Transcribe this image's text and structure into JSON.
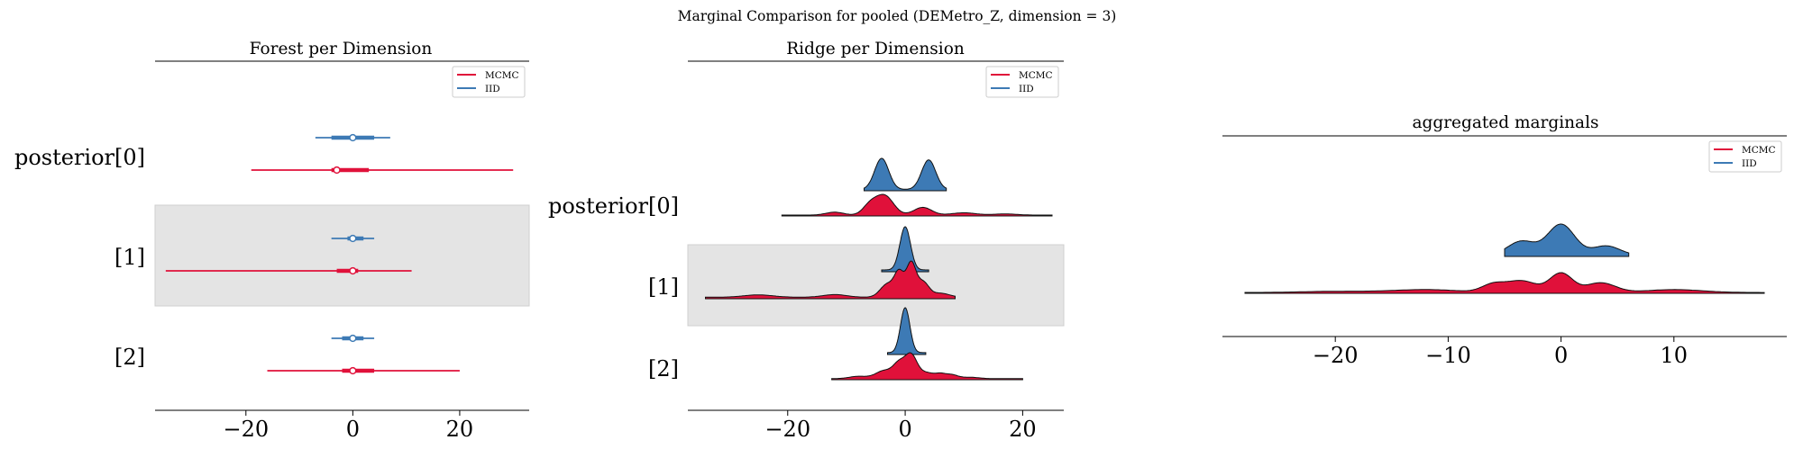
{
  "suptitle": "Marginal Comparison for pooled (DEMetro_Z, dimension = 3)",
  "colors": {
    "mcmc": "#e0113a",
    "iid": "#3d7ab5",
    "band": "#e4e4e4"
  },
  "chart_data": [
    {
      "type": "forest",
      "title": "Forest per Dimension",
      "xlim": [
        -37,
        33
      ],
      "xticks": [
        -20,
        0,
        20
      ],
      "xticklabels": [
        "−20",
        "0",
        "20"
      ],
      "ylabels": [
        "posterior[0]",
        "[1]",
        "[2]"
      ],
      "legend": {
        "position": "top-right",
        "entries": [
          "MCMC",
          "IID"
        ]
      },
      "series": [
        {
          "name": "MCMC",
          "rows": [
            {
              "median": -3,
              "iqr": [
                -4,
                3
              ],
              "hdi": [
                -19,
                30
              ]
            },
            {
              "median": 0,
              "iqr": [
                -3,
                1
              ],
              "hdi": [
                -35,
                11
              ]
            },
            {
              "median": 0,
              "iqr": [
                -2,
                4
              ],
              "hdi": [
                -16,
                20
              ]
            }
          ]
        },
        {
          "name": "IID",
          "rows": [
            {
              "median": 0,
              "iqr": [
                -4,
                4
              ],
              "hdi": [
                -7,
                7
              ]
            },
            {
              "median": 0,
              "iqr": [
                -1,
                2
              ],
              "hdi": [
                -4,
                4
              ]
            },
            {
              "median": 0,
              "iqr": [
                -2,
                2
              ],
              "hdi": [
                -4,
                4
              ]
            }
          ]
        }
      ]
    },
    {
      "type": "ridge",
      "title": "Ridge per Dimension",
      "xlim": [
        -37,
        27
      ],
      "xticks": [
        -20,
        0,
        20
      ],
      "xticklabels": [
        "−20",
        "0",
        "20"
      ],
      "ylabels": [
        "posterior[0]",
        "[1]",
        "[2]"
      ],
      "legend": {
        "position": "top-right",
        "entries": [
          "MCMC",
          "IID"
        ]
      },
      "ridges": [
        {
          "iid": {
            "range": [
              -7,
              7
            ],
            "peaks": [
              [
                -4,
                1.2,
                1.0
              ],
              [
                4,
                1.2,
                0.95
              ]
            ]
          },
          "mcmc": {
            "range": [
              -21,
              25
            ],
            "peaks": [
              [
                -3.5,
                1.5,
                1.0
              ],
              [
                -6,
                1.2,
                0.5
              ],
              [
                3,
                1.5,
                0.4
              ],
              [
                -12,
                1.5,
                0.15
              ],
              [
                10,
                2.0,
                0.12
              ],
              [
                17,
                2.0,
                0.06
              ]
            ]
          }
        },
        {
          "iid": {
            "range": [
              -4,
              4
            ],
            "peaks": [
              [
                0,
                0.9,
                1.0
              ]
            ]
          },
          "mcmc": {
            "range": [
              -34,
              8.5
            ],
            "peaks": [
              [
                -1,
                0.8,
                0.7
              ],
              [
                1,
                0.8,
                1.0
              ],
              [
                3,
                1.0,
                0.45
              ],
              [
                -3,
                1.2,
                0.4
              ],
              [
                -12,
                2.0,
                0.08
              ],
              [
                -25,
                2.5,
                0.07
              ],
              [
                6,
                1.5,
                0.12
              ]
            ]
          }
        },
        {
          "iid": {
            "range": [
              -3,
              3.5
            ],
            "peaks": [
              [
                0,
                0.8,
                1.0
              ]
            ]
          },
          "mcmc": {
            "range": [
              -12.5,
              20
            ],
            "peaks": [
              [
                -1,
                1.0,
                0.6
              ],
              [
                1,
                1.0,
                1.0
              ],
              [
                -3.5,
                1.5,
                0.35
              ],
              [
                3.5,
                1.2,
                0.25
              ],
              [
                6,
                1.0,
                0.2
              ],
              [
                8,
                1.0,
                0.15
              ],
              [
                11,
                1.5,
                0.06
              ],
              [
                -8,
                1.5,
                0.1
              ]
            ]
          }
        }
      ]
    },
    {
      "type": "ridge",
      "title": "aggregated marginals",
      "xlim": [
        -30,
        20
      ],
      "xticks": [
        -20,
        -10,
        0,
        10
      ],
      "xticklabels": [
        "−20",
        "−10",
        "0",
        "10"
      ],
      "legend": {
        "position": "top-right",
        "entries": [
          "MCMC",
          "IID"
        ]
      },
      "iid": {
        "range": [
          -5,
          6
        ],
        "peaks": [
          [
            0,
            1.2,
            1.0
          ],
          [
            -3.5,
            1.2,
            0.45
          ],
          [
            4,
            1.2,
            0.3
          ]
        ]
      },
      "mcmc": {
        "range": [
          -28,
          18
        ],
        "peaks": [
          [
            0,
            1.0,
            1.0
          ],
          [
            -3.5,
            1.3,
            0.6
          ],
          [
            3.5,
            1.3,
            0.5
          ],
          [
            -6,
            1.0,
            0.4
          ],
          [
            -12,
            3.0,
            0.15
          ],
          [
            10,
            2.5,
            0.15
          ],
          [
            -20,
            3.0,
            0.06
          ]
        ]
      }
    }
  ]
}
